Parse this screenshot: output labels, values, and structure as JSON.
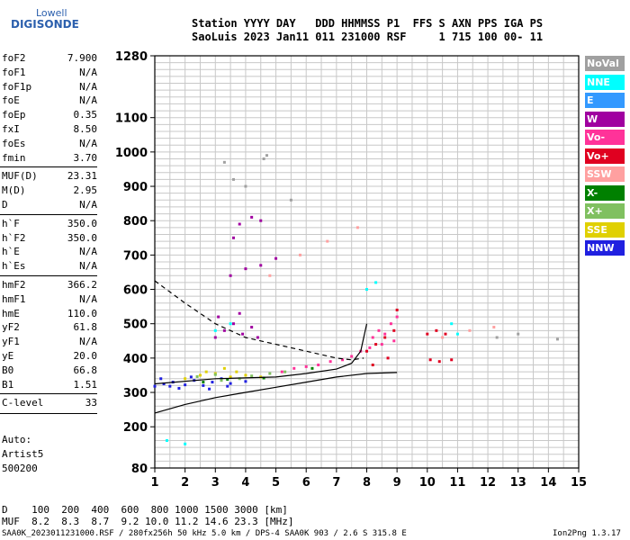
{
  "logo": {
    "line1": "Lowell",
    "line2": "DIGISONDE"
  },
  "header": {
    "labels": "Station YYYY DAY   DDD HHMMSS P1  FFS S AXN PPS IGA PS",
    "values": "SaoLuis 2023 Jan11 011 231000 RSF     1 715 100 00- 11"
  },
  "params": [
    {
      "name": "foF2",
      "value": "7.900"
    },
    {
      "name": "foF1",
      "value": "N/A"
    },
    {
      "name": "foF1p",
      "value": "N/A"
    },
    {
      "name": "foE",
      "value": "N/A"
    },
    {
      "name": "foEp",
      "value": "0.35"
    },
    {
      "name": "fxI",
      "value": "8.50"
    },
    {
      "name": "foEs",
      "value": "N/A"
    },
    {
      "name": "fmin",
      "value": "3.70"
    },
    {
      "name": "MUF(D)",
      "value": "23.31"
    },
    {
      "name": "M(D)",
      "value": "2.95"
    },
    {
      "name": "D",
      "value": "N/A"
    },
    {
      "name": "h`F",
      "value": "350.0"
    },
    {
      "name": "h`F2",
      "value": "350.0"
    },
    {
      "name": "h`E",
      "value": "N/A"
    },
    {
      "name": "h`Es",
      "value": "N/A"
    },
    {
      "name": "hmF2",
      "value": "366.2"
    },
    {
      "name": "hmF1",
      "value": "N/A"
    },
    {
      "name": "hmE",
      "value": "110.0"
    },
    {
      "name": "yF2",
      "value": "61.8"
    },
    {
      "name": "yF1",
      "value": "N/A"
    },
    {
      "name": "yE",
      "value": "20.0"
    },
    {
      "name": "B0",
      "value": "66.8"
    },
    {
      "name": "B1",
      "value": "1.51"
    },
    {
      "name": "C-level",
      "value": "33"
    }
  ],
  "auto": {
    "line1": "Auto:",
    "line2": "Artist5",
    "line3": "500200"
  },
  "legend": [
    {
      "label": "NoVal",
      "color": "#a0a0a0"
    },
    {
      "label": "NNE",
      "color": "#00ffff"
    },
    {
      "label": "E",
      "color": "#3399ff"
    },
    {
      "label": "W",
      "color": "#a000a0"
    },
    {
      "label": "Vo-",
      "color": "#ff3399"
    },
    {
      "label": "Vo+",
      "color": "#e00020"
    },
    {
      "label": "SSW",
      "color": "#ffa0a0"
    },
    {
      "label": "X-",
      "color": "#008000"
    },
    {
      "label": "X+",
      "color": "#80c060"
    },
    {
      "label": "SSE",
      "color": "#e0d000"
    },
    {
      "label": "NNW",
      "color": "#2020e0"
    }
  ],
  "footer": {
    "d_row": "D    100  200  400  600  800 1000 1500 3000 [km]",
    "muf_row": "MUF  8.2  8.3  8.7  9.2 10.0 11.2 14.6 23.3 [MHz]",
    "file_line": "SAA0K_2023011231000.RSF / 280fx256h 50 kHz 5.0 km / DPS-4 SAA0K 903 / 2.6 S 315.8 E",
    "version": "Ion2Png 1.3.17"
  },
  "chart_data": {
    "type": "scatter",
    "xlim": [
      1,
      15
    ],
    "ylim": [
      80,
      1280
    ],
    "x_ticks": [
      "1",
      "2",
      "3",
      "4",
      "5",
      "6",
      "7",
      "8",
      "9",
      "10",
      "11",
      "12",
      "13",
      "14",
      "15"
    ],
    "y_ticks": [
      {
        "value": 80,
        "label": "80"
      },
      {
        "value": 200,
        "label": "200"
      },
      {
        "value": 300,
        "label": "300"
      },
      {
        "value": 400,
        "label": "400"
      },
      {
        "value": 500,
        "label": "500"
      },
      {
        "value": 600,
        "label": "600"
      },
      {
        "value": 700,
        "label": "700"
      },
      {
        "value": 800,
        "label": "800"
      },
      {
        "value": 900,
        "label": "900"
      },
      {
        "value": 1000,
        "label": "1000"
      },
      {
        "value": 1100,
        "label": "1100"
      },
      {
        "value": 1280,
        "label": "1280"
      }
    ],
    "grid": true,
    "series": [
      {
        "color": "#2020e0",
        "points": [
          [
            1.0,
            318
          ],
          [
            1.3,
            325
          ],
          [
            1.6,
            330
          ],
          [
            2.0,
            322
          ],
          [
            2.3,
            335
          ],
          [
            2.6,
            320
          ],
          [
            2.9,
            330
          ],
          [
            3.2,
            340
          ],
          [
            3.5,
            326
          ],
          [
            1.2,
            340
          ],
          [
            1.8,
            312
          ],
          [
            2.2,
            345
          ],
          [
            2.8,
            310
          ],
          [
            3.4,
            318
          ],
          [
            4.0,
            332
          ],
          [
            1.5,
            318
          ]
        ]
      },
      {
        "color": "#a000a0",
        "points": [
          [
            3.0,
            460
          ],
          [
            3.3,
            480
          ],
          [
            3.6,
            500
          ],
          [
            3.9,
            470
          ],
          [
            4.2,
            490
          ],
          [
            3.1,
            520
          ],
          [
            3.8,
            530
          ],
          [
            4.4,
            460
          ],
          [
            3.5,
            640
          ],
          [
            4.0,
            660
          ],
          [
            4.5,
            670
          ],
          [
            5.0,
            690
          ],
          [
            3.8,
            790
          ],
          [
            4.2,
            810
          ],
          [
            4.5,
            800
          ],
          [
            3.6,
            750
          ]
        ]
      },
      {
        "color": "#ff3399",
        "points": [
          [
            5.2,
            360
          ],
          [
            5.6,
            370
          ],
          [
            6.0,
            375
          ],
          [
            6.4,
            380
          ],
          [
            6.8,
            390
          ],
          [
            7.2,
            395
          ],
          [
            7.5,
            405
          ],
          [
            7.8,
            420
          ],
          [
            8.2,
            460
          ],
          [
            8.4,
            480
          ],
          [
            8.6,
            470
          ],
          [
            8.8,
            500
          ],
          [
            9.0,
            520
          ],
          [
            8.1,
            430
          ],
          [
            8.5,
            440
          ],
          [
            8.9,
            450
          ]
        ]
      },
      {
        "color": "#e00020",
        "points": [
          [
            8.0,
            420
          ],
          [
            8.3,
            440
          ],
          [
            8.6,
            460
          ],
          [
            8.9,
            480
          ],
          [
            9.0,
            540
          ],
          [
            8.2,
            380
          ],
          [
            8.7,
            400
          ],
          [
            10.0,
            470
          ],
          [
            10.3,
            480
          ],
          [
            10.6,
            470
          ],
          [
            10.1,
            395
          ],
          [
            10.4,
            390
          ],
          [
            10.8,
            395
          ]
        ]
      },
      {
        "color": "#e0d000",
        "points": [
          [
            2.0,
            340
          ],
          [
            2.5,
            350
          ],
          [
            3.0,
            355
          ],
          [
            3.5,
            345
          ],
          [
            4.0,
            350
          ],
          [
            4.5,
            345
          ],
          [
            3.7,
            360
          ],
          [
            2.7,
            360
          ],
          [
            3.3,
            370
          ]
        ]
      },
      {
        "color": "#80c060",
        "points": [
          [
            3.2,
            335
          ],
          [
            3.8,
            340
          ],
          [
            4.2,
            348
          ],
          [
            4.8,
            355
          ],
          [
            5.3,
            360
          ],
          [
            2.4,
            346
          ],
          [
            3.0,
            352
          ]
        ]
      },
      {
        "color": "#00ffff",
        "points": [
          [
            3.0,
            480
          ],
          [
            3.5,
            500
          ],
          [
            8.0,
            600
          ],
          [
            10.8,
            500
          ],
          [
            11.0,
            470
          ],
          [
            8.3,
            620
          ],
          [
            2.0,
            150
          ],
          [
            1.4,
            160
          ]
        ]
      },
      {
        "color": "#ffa0a0",
        "points": [
          [
            10.5,
            460
          ],
          [
            11.4,
            480
          ],
          [
            12.2,
            490
          ],
          [
            4.8,
            640
          ],
          [
            5.8,
            700
          ],
          [
            6.7,
            740
          ],
          [
            7.7,
            780
          ]
        ]
      },
      {
        "color": "#a0a0a0",
        "points": [
          [
            3.3,
            970
          ],
          [
            3.6,
            920
          ],
          [
            4.0,
            900
          ],
          [
            4.6,
            980
          ],
          [
            4.7,
            990
          ],
          [
            5.5,
            860
          ],
          [
            12.3,
            460
          ],
          [
            13.0,
            470
          ],
          [
            14.3,
            455
          ]
        ]
      },
      {
        "color": "#008000",
        "points": [
          [
            2.6,
            330
          ],
          [
            3.4,
            338
          ],
          [
            4.6,
            342
          ],
          [
            6.2,
            370
          ]
        ]
      }
    ],
    "curves": [
      {
        "style": "solid",
        "points": [
          [
            1.0,
            240
          ],
          [
            2.0,
            265
          ],
          [
            3.0,
            285
          ],
          [
            4.0,
            300
          ],
          [
            5.0,
            315
          ],
          [
            6.0,
            330
          ],
          [
            7.0,
            345
          ],
          [
            8.0,
            355
          ],
          [
            9.0,
            358
          ]
        ]
      },
      {
        "style": "solid",
        "points": [
          [
            1.0,
            325
          ],
          [
            3.0,
            340
          ],
          [
            5.0,
            345
          ],
          [
            6.0,
            355
          ],
          [
            7.0,
            368
          ],
          [
            7.5,
            385
          ],
          [
            7.8,
            420
          ],
          [
            8.0,
            500
          ]
        ]
      },
      {
        "style": "dashed",
        "points": [
          [
            1.0,
            625
          ],
          [
            2.0,
            560
          ],
          [
            3.0,
            500
          ],
          [
            4.0,
            460
          ],
          [
            5.0,
            440
          ],
          [
            6.0,
            420
          ],
          [
            7.0,
            400
          ],
          [
            7.5,
            395
          ],
          [
            7.9,
            400
          ]
        ]
      }
    ]
  }
}
